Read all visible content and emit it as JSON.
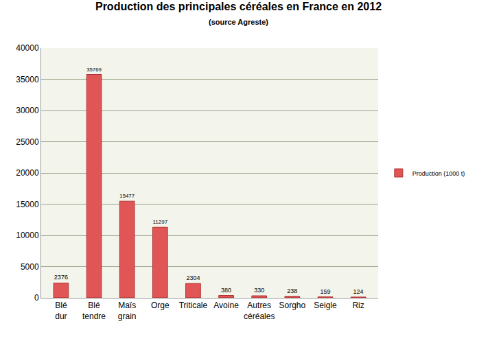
{
  "chart_data": {
    "type": "bar",
    "title": "Production des principales céréales en France en 2012",
    "subtitle": "(source Agreste)",
    "categories": [
      "Blé dur",
      "Blé tendre",
      "Maïs grain",
      "Orge",
      "Triticale",
      "Avoine",
      "Autres céréales",
      "Sorgho",
      "Seigle",
      "Riz"
    ],
    "series": [
      {
        "name": "Production (1000 t)",
        "color": "#e05555",
        "values": [
          2376,
          35769,
          15477,
          11297,
          2304,
          380,
          330,
          238,
          159,
          124
        ]
      }
    ],
    "ylim": [
      0,
      40000
    ],
    "yticks": [
      0,
      5000,
      10000,
      15000,
      20000,
      25000,
      30000,
      35000,
      40000
    ],
    "grid": true,
    "data_labels": true,
    "legend": "right"
  }
}
